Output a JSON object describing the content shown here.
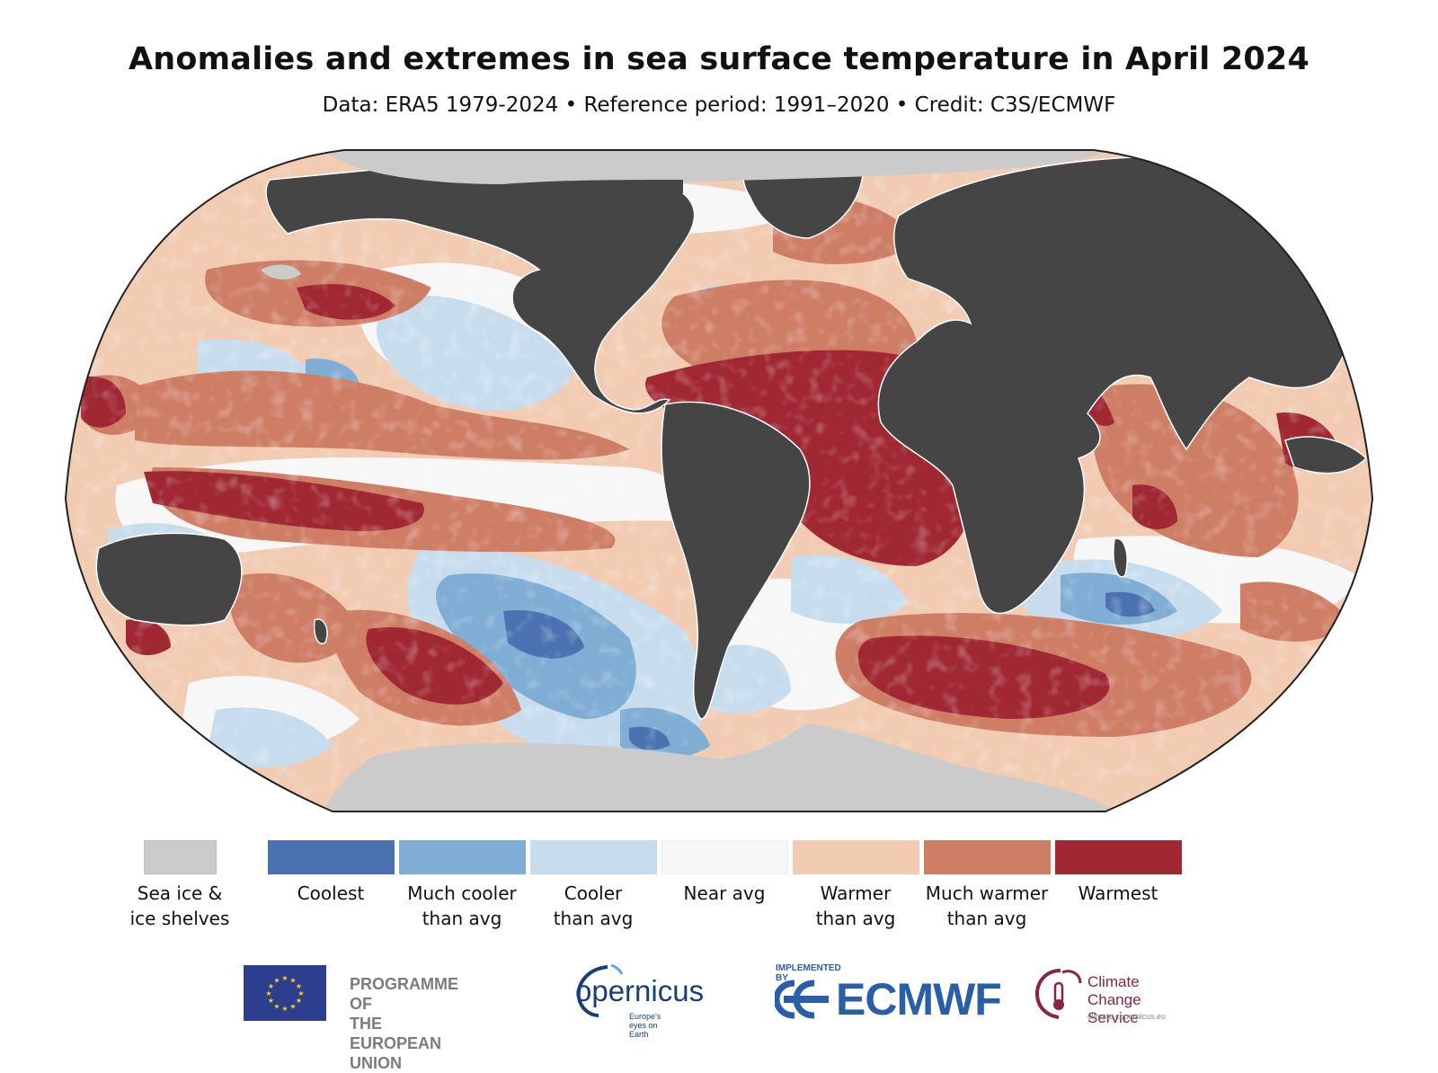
{
  "header": {
    "title": "Anomalies and extremes in sea surface temperature in April 2024",
    "subtitle": "Data: ERA5 1979-2024 • Reference period: 1991–2020 • Credit: C3S/ECMWF"
  },
  "map": {
    "projection": "Robinson",
    "colors": {
      "land": "#454545",
      "sea_ice": "#cbcbcb",
      "coolest": "#4b72b0",
      "much_cooler": "#7fadd3",
      "cooler": "#c7ddee",
      "near_avg": "#f7f7f7",
      "warmer": "#f1cbb2",
      "much_warmer": "#cf7e66",
      "warmest": "#a02833"
    }
  },
  "legend": {
    "items": [
      {
        "key": "sea_ice",
        "label_line1": "Sea ice &",
        "label_line2": "ice shelves",
        "color": "#cbcbcb"
      },
      {
        "key": "coolest",
        "label_line1": "Coolest",
        "label_line2": "",
        "color": "#4b72b0"
      },
      {
        "key": "much_cooler",
        "label_line1": "Much cooler",
        "label_line2": "than avg",
        "color": "#7fadd3"
      },
      {
        "key": "cooler",
        "label_line1": "Cooler",
        "label_line2": "than avg",
        "color": "#c7ddee"
      },
      {
        "key": "near_avg",
        "label_line1": "Near avg",
        "label_line2": "",
        "color": "#f7f7f7"
      },
      {
        "key": "warmer",
        "label_line1": "Warmer",
        "label_line2": "than avg",
        "color": "#f1cbb2"
      },
      {
        "key": "much_warmer",
        "label_line1": "Much warmer",
        "label_line2": "than avg",
        "color": "#cf7e66"
      },
      {
        "key": "warmest",
        "label_line1": "Warmest",
        "label_line2": "",
        "color": "#a02833"
      }
    ]
  },
  "logos": {
    "eu_line1": "PROGRAMME OF",
    "eu_line2": "THE EUROPEAN UNION",
    "copernicus": "opernicus",
    "copernicus_tagline": "Europe's eyes on Earth",
    "ecmwf_implemented": "IMPLEMENTED BY",
    "ecmwf": "ECMWF",
    "ccs_line1": "Climate",
    "ccs_line2": "Change Service",
    "ccs_url": "climate.copernicus.eu"
  }
}
